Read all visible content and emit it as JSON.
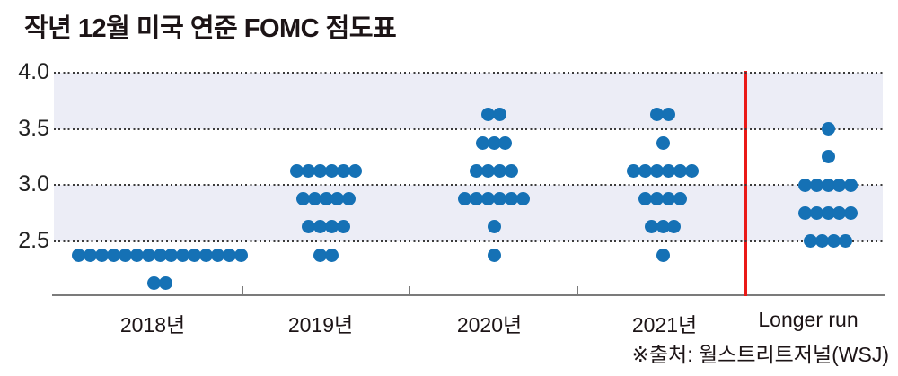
{
  "title": "작년 12월 미국 연준 FOMC 점도표",
  "source": "※출처: 월스트리트저널(WSJ)",
  "chart_data": {
    "type": "scatter",
    "subtype": "fomc-dot-plot",
    "title": "작년 12월 미국 연준 FOMC 점도표",
    "xlabel": "",
    "ylabel": "",
    "ylim": [
      2.05,
      4.0
    ],
    "yticks": [
      4.0,
      3.5,
      3.0,
      2.5
    ],
    "ytick_labels": [
      "4.0",
      "3.5",
      "3.0",
      "2.5"
    ],
    "grid": "dotted-horizontal",
    "shaded_bands": [
      [
        3.5,
        4.0
      ],
      [
        2.5,
        3.0
      ]
    ],
    "categories": [
      "2018년",
      "2019년",
      "2020년",
      "2021년",
      "Longer run"
    ],
    "separator_before": "Longer run",
    "columns": [
      {
        "label": "2018년",
        "dots": [
          {
            "value": 2.375,
            "count": 15
          },
          {
            "value": 2.125,
            "count": 2
          }
        ]
      },
      {
        "label": "2019년",
        "dots": [
          {
            "value": 3.125,
            "count": 6
          },
          {
            "value": 2.875,
            "count": 5
          },
          {
            "value": 2.625,
            "count": 4
          },
          {
            "value": 2.375,
            "count": 2
          }
        ]
      },
      {
        "label": "2020년",
        "dots": [
          {
            "value": 3.625,
            "count": 2
          },
          {
            "value": 3.375,
            "count": 3
          },
          {
            "value": 3.125,
            "count": 4
          },
          {
            "value": 2.875,
            "count": 6
          },
          {
            "value": 2.625,
            "count": 1
          },
          {
            "value": 2.375,
            "count": 1
          }
        ]
      },
      {
        "label": "2021년",
        "dots": [
          {
            "value": 3.625,
            "count": 2
          },
          {
            "value": 3.375,
            "count": 1
          },
          {
            "value": 3.125,
            "count": 6
          },
          {
            "value": 2.875,
            "count": 4
          },
          {
            "value": 2.625,
            "count": 3
          },
          {
            "value": 2.375,
            "count": 1
          }
        ]
      },
      {
        "label": "Longer run",
        "dots": [
          {
            "value": 3.5,
            "count": 1
          },
          {
            "value": 3.25,
            "count": 1
          },
          {
            "value": 3.0,
            "count": 5
          },
          {
            "value": 2.75,
            "count": 5
          },
          {
            "value": 2.5,
            "count": 4
          }
        ]
      }
    ],
    "colors": {
      "dot": "#1571b5",
      "band": "#ecedf6",
      "gridline": "#3b3b3b",
      "axis": "#7b7b7b",
      "separator": "#ea1917",
      "text": "#1c1416"
    }
  }
}
